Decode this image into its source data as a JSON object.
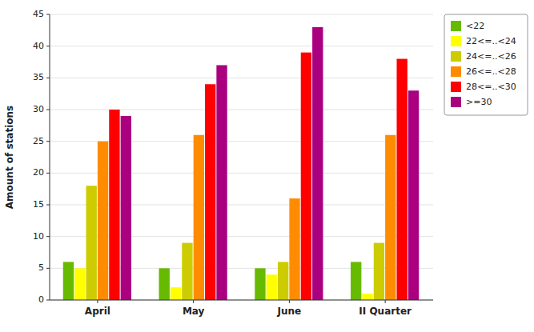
{
  "chart_data": {
    "type": "bar",
    "ylabel": "Amount of stations",
    "categories": [
      "April",
      "May",
      "June",
      "II Quarter"
    ],
    "series": [
      {
        "name": "<22",
        "color": "#66bb00",
        "values": [
          6,
          5,
          5,
          6
        ]
      },
      {
        "name": "22<=..<24",
        "color": "#ffff00",
        "values": [
          5,
          2,
          4,
          1
        ]
      },
      {
        "name": "24<=..<26",
        "color": "#cccc00",
        "values": [
          18,
          9,
          6,
          9
        ]
      },
      {
        "name": "26<=..<28",
        "color": "#ff8c00",
        "values": [
          25,
          26,
          16,
          26
        ]
      },
      {
        "name": "28<=..<30",
        "color": "#ff0000",
        "values": [
          30,
          34,
          39,
          38
        ]
      },
      {
        "name": ">=30",
        "color": "#aa0080",
        "values": [
          29,
          37,
          43,
          33
        ]
      }
    ],
    "ylim": [
      0,
      45
    ],
    "yticks": [
      0,
      5,
      10,
      15,
      20,
      25,
      30,
      35,
      40,
      45
    ],
    "grid": true,
    "legend": "upper right"
  }
}
